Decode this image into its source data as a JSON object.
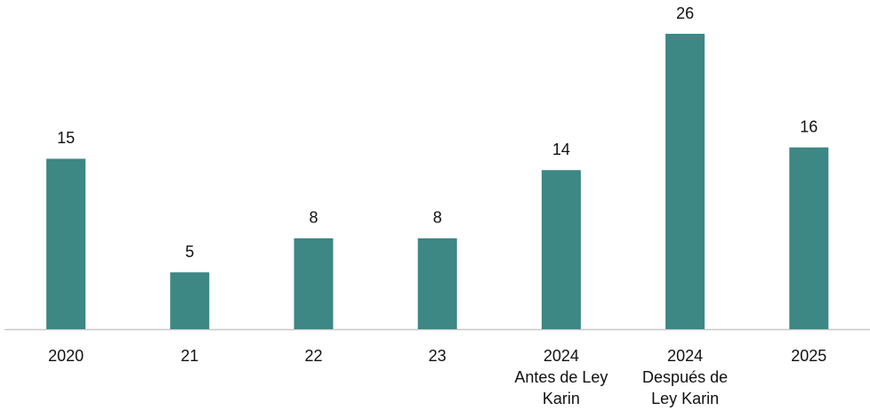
{
  "chart_data": {
    "type": "bar",
    "categories": [
      "2020",
      "21",
      "22",
      "23",
      "2024\nAntes de Ley\nKarin",
      "2024\nDespués de\nLey Karin",
      "2025"
    ],
    "values": [
      15,
      5,
      8,
      8,
      14,
      26,
      16
    ],
    "color": "#3d8784"
  }
}
